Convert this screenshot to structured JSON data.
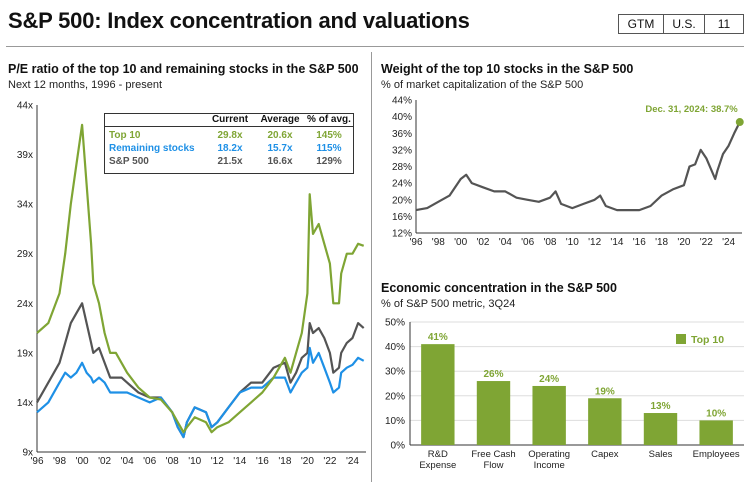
{
  "header": {
    "title": "S&P 500: Index concentration and valuations",
    "badges": [
      "GTM",
      "U.S.",
      "11"
    ]
  },
  "colors": {
    "top10": "#7FA534",
    "remaining": "#1E90E6",
    "sp500": "#545454",
    "bar": "#7FA534"
  },
  "pe_panel": {
    "title": "P/E ratio of the top 10 and remaining stocks in the S&P 500",
    "subtitle": "Next 12 months, 1996 - present",
    "table": {
      "headers": [
        "",
        "Current",
        "Average",
        "% of avg."
      ],
      "rows": [
        {
          "label": "Top 10",
          "current": "29.8x",
          "average": "20.6x",
          "pct": "145%"
        },
        {
          "label": "Remaining stocks",
          "current": "18.2x",
          "average": "15.7x",
          "pct": "115%"
        },
        {
          "label": "S&P 500",
          "current": "21.5x",
          "average": "16.6x",
          "pct": "129%"
        }
      ]
    }
  },
  "weight_panel": {
    "title": "Weight of the top 10 stocks in the S&P 500",
    "subtitle": "% of market capitalization of the S&P 500",
    "annotation": "Dec. 31, 2024: 38.7%"
  },
  "econ_panel": {
    "title": "Economic concentration in the S&P 500",
    "subtitle": "% of S&P 500 metric, 3Q24",
    "legend": "Top 10"
  },
  "chart_data": [
    {
      "type": "line",
      "title": "P/E ratio of the top 10 and remaining stocks in the S&P 500",
      "ylim": [
        9,
        44
      ],
      "yticks": [
        9,
        14,
        19,
        24,
        29,
        34,
        39,
        44
      ],
      "ytick_labels": [
        "9x",
        "14x",
        "19x",
        "24x",
        "29x",
        "34x",
        "39x",
        "44x"
      ],
      "xlim": [
        1996,
        2025.2
      ],
      "xticks": [
        1996,
        1998,
        2000,
        2002,
        2004,
        2006,
        2008,
        2010,
        2012,
        2014,
        2016,
        2018,
        2020,
        2022,
        2024
      ],
      "xtick_labels": [
        "'96",
        "'98",
        "'00",
        "'02",
        "'04",
        "'06",
        "'08",
        "'10",
        "'12",
        "'14",
        "'16",
        "'18",
        "'20",
        "'22",
        "'24"
      ],
      "x": [
        1996,
        1997,
        1998,
        1998.5,
        1999,
        1999.5,
        2000,
        2000.4,
        2000.8,
        2001,
        2001.5,
        2002,
        2002.5,
        2003,
        2003.5,
        2004,
        2005,
        2006,
        2007,
        2008,
        2008.5,
        2009,
        2009.3,
        2010,
        2011,
        2011.5,
        2012,
        2013,
        2014,
        2015,
        2016,
        2017,
        2018,
        2018.5,
        2019,
        2019.5,
        2020,
        2020.2,
        2020.5,
        2021,
        2021.5,
        2022,
        2022.3,
        2022.8,
        2023,
        2023.5,
        2024,
        2024.5,
        2025
      ],
      "series": [
        {
          "name": "Top 10",
          "values": [
            21,
            22,
            25,
            29,
            34,
            38,
            42,
            36,
            30,
            26,
            24,
            21,
            19,
            19,
            18,
            17,
            15.5,
            14.5,
            14.3,
            13,
            12,
            11,
            11.5,
            12.5,
            12,
            11,
            11.5,
            12,
            13,
            14,
            15,
            16.5,
            18.5,
            17,
            19,
            21,
            25,
            35,
            31,
            32,
            30,
            28,
            24,
            24,
            27,
            29,
            29,
            30,
            29.8
          ]
        },
        {
          "name": "Remaining stocks",
          "values": [
            13,
            14,
            16,
            17,
            16.5,
            17,
            18,
            17,
            16.5,
            16,
            16.5,
            16,
            15,
            15,
            15,
            15,
            14.5,
            14,
            14.5,
            13,
            11.5,
            10.5,
            12,
            13.5,
            13,
            11.5,
            12,
            13.5,
            15,
            15.5,
            15.5,
            16.5,
            16.5,
            15,
            16,
            17,
            17.5,
            19.5,
            18,
            19,
            17.5,
            16,
            15,
            15.5,
            17,
            17.5,
            17.8,
            18.5,
            18.2
          ]
        },
        {
          "name": "S&P 500",
          "values": [
            14,
            16,
            18,
            20,
            22,
            23,
            24,
            22,
            20,
            19,
            19.5,
            18,
            16.5,
            16.5,
            16.5,
            16,
            15,
            14.5,
            14.5,
            13,
            11.5,
            10.5,
            12,
            13.5,
            13,
            11.5,
            12,
            13.5,
            15,
            16,
            16,
            17.5,
            18,
            16,
            17,
            18.5,
            19,
            22,
            21,
            21.5,
            20.5,
            19,
            17,
            17.5,
            19,
            20,
            20.5,
            22,
            21.5
          ]
        }
      ]
    },
    {
      "type": "line",
      "title": "Weight of the top 10 stocks in the S&P 500",
      "ylim": [
        12,
        44
      ],
      "yticks": [
        12,
        16,
        20,
        24,
        28,
        32,
        36,
        40,
        44
      ],
      "ytick_labels": [
        "12%",
        "16%",
        "20%",
        "24%",
        "28%",
        "32%",
        "36%",
        "40%",
        "44%"
      ],
      "xlim": [
        1996,
        2025.2
      ],
      "xticks": [
        1996,
        1998,
        2000,
        2002,
        2004,
        2006,
        2008,
        2010,
        2012,
        2014,
        2016,
        2018,
        2020,
        2022,
        2024
      ],
      "xtick_labels": [
        "'96",
        "'98",
        "'00",
        "'02",
        "'04",
        "'06",
        "'08",
        "'10",
        "'12",
        "'14",
        "'16",
        "'18",
        "'20",
        "'22",
        "'24"
      ],
      "x": [
        1996,
        1997,
        1998,
        1999,
        2000,
        2000.5,
        2001,
        2002,
        2003,
        2004,
        2005,
        2006,
        2007,
        2008,
        2008.5,
        2009,
        2010,
        2011,
        2012,
        2012.5,
        2013,
        2014,
        2015,
        2016,
        2017,
        2018,
        2019,
        2020,
        2020.5,
        2021,
        2021.5,
        2022,
        2022.8,
        2023,
        2023.5,
        2024,
        2024.5,
        2025
      ],
      "series": [
        {
          "name": "Top 10",
          "values": [
            17.5,
            18,
            19.5,
            21,
            25,
            26,
            24,
            23,
            22,
            22,
            20.5,
            20,
            19.5,
            20.5,
            22,
            19,
            18,
            19,
            20,
            21,
            18.5,
            17.5,
            17.5,
            17.5,
            18.5,
            21,
            22.5,
            23.5,
            28,
            28.5,
            32,
            30,
            25,
            27,
            31,
            33,
            36,
            38.7
          ]
        }
      ],
      "annotation": "Dec. 31, 2024: 38.7%"
    },
    {
      "type": "bar",
      "title": "Economic concentration in the S&P 500",
      "ylim": [
        0,
        50
      ],
      "yticks": [
        0,
        10,
        20,
        30,
        40,
        50
      ],
      "ytick_labels": [
        "0%",
        "10%",
        "20%",
        "30%",
        "40%",
        "50%"
      ],
      "categories": [
        [
          "R&D",
          "Expense"
        ],
        [
          "Free Cash",
          "Flow"
        ],
        [
          "Operating",
          "Income"
        ],
        [
          "Capex"
        ],
        [
          "Sales"
        ],
        [
          "Employees"
        ]
      ],
      "values": [
        41,
        26,
        24,
        19,
        13,
        10
      ],
      "value_labels": [
        "41%",
        "26%",
        "24%",
        "19%",
        "13%",
        "10%"
      ],
      "legend": [
        "Top 10"
      ]
    }
  ]
}
